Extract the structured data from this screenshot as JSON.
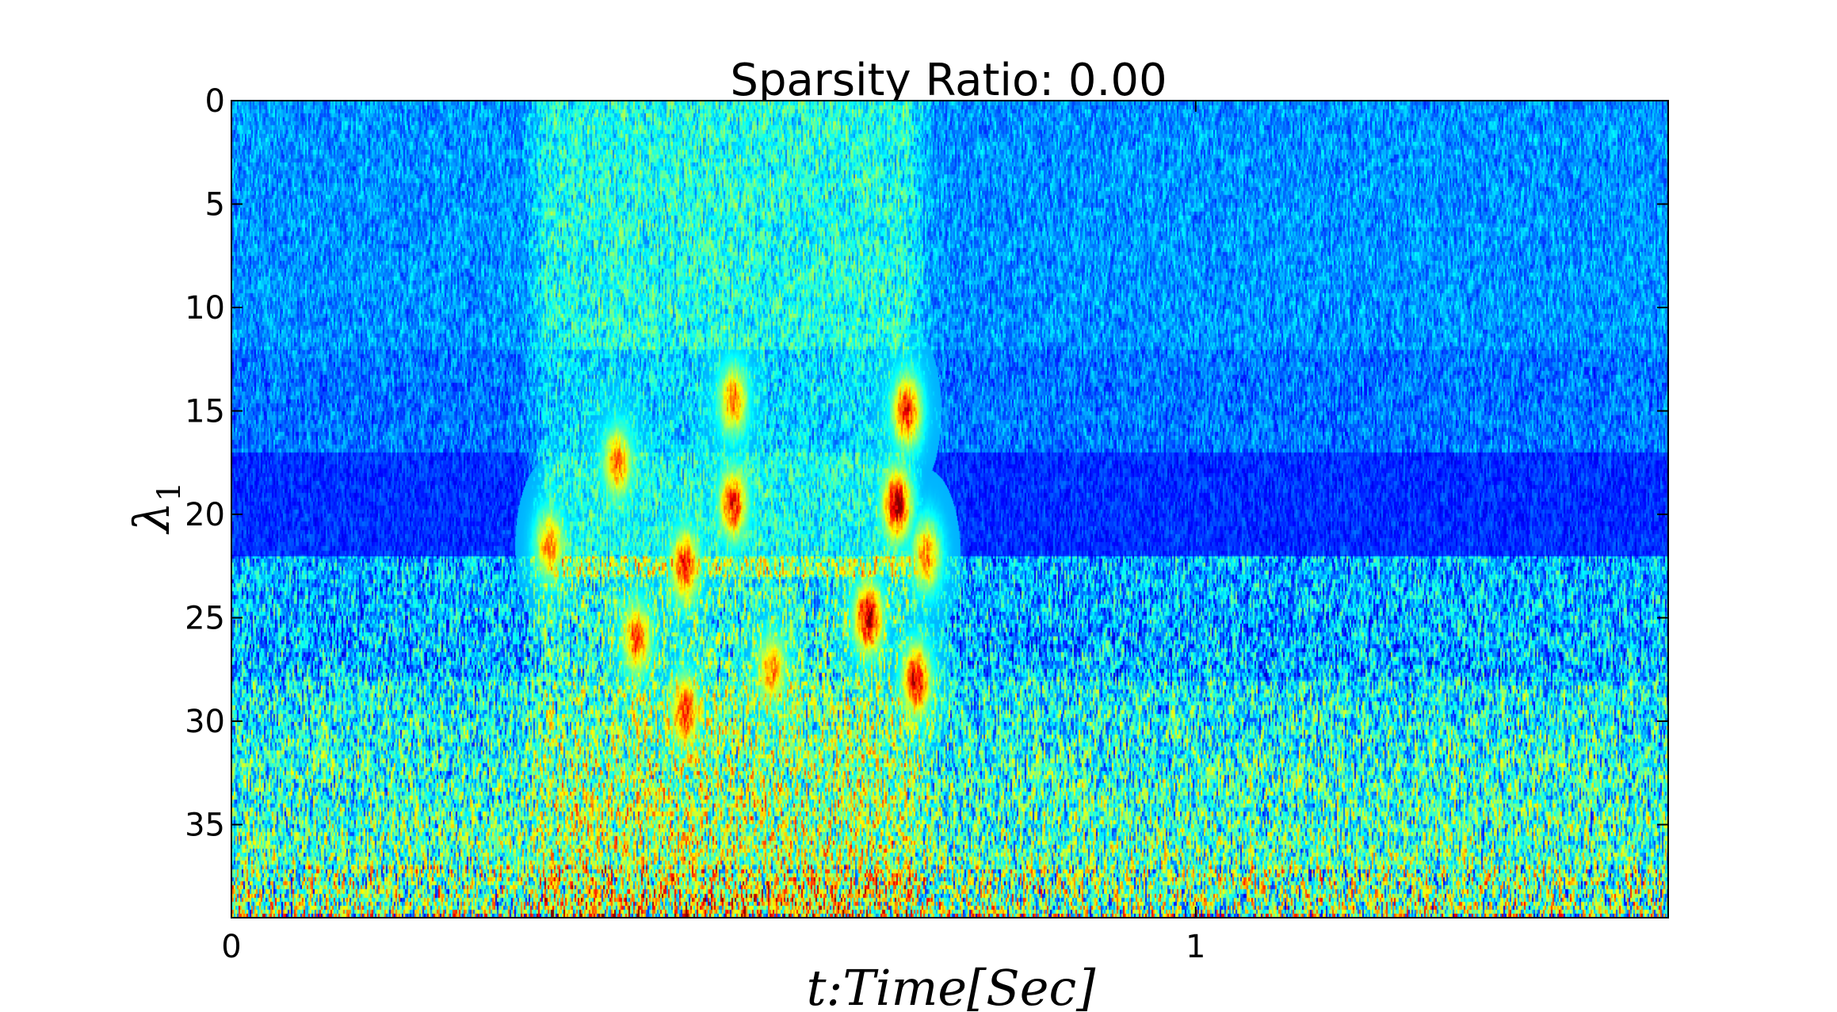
{
  "chart_data": {
    "type": "heatmap",
    "title": "Sparsity Ratio: 0.00",
    "xlabel": "t:Time[Sec]",
    "ylabel": "λ",
    "ylabel_subscript": "1",
    "xlim": [
      0,
      1.49
    ],
    "ylim": [
      0,
      39.5
    ],
    "y_inverted": true,
    "x_ticks": [
      0,
      1
    ],
    "x_tick_labels": [
      "0",
      "1"
    ],
    "y_ticks": [
      0,
      5,
      10,
      15,
      20,
      25,
      30,
      35
    ],
    "y_tick_labels": [
      "0",
      "5",
      "10",
      "15",
      "20",
      "25",
      "30",
      "35"
    ],
    "grid": false,
    "colormap": "jet",
    "description_values": {
      "dominant_low_band_rows": [
        18,
        21
      ],
      "activity_time_window_sec": [
        0.3,
        0.73
      ],
      "hotspots": [
        {
          "t": 0.33,
          "lambda": 21.5,
          "value": 0.75
        },
        {
          "t": 0.4,
          "lambda": 17.5,
          "value": 0.75
        },
        {
          "t": 0.42,
          "lambda": 26,
          "value": 0.8
        },
        {
          "t": 0.47,
          "lambda": 29.5,
          "value": 0.85
        },
        {
          "t": 0.47,
          "lambda": 22.5,
          "value": 0.85
        },
        {
          "t": 0.52,
          "lambda": 19.5,
          "value": 0.85
        },
        {
          "t": 0.52,
          "lambda": 14.5,
          "value": 0.75
        },
        {
          "t": 0.56,
          "lambda": 27.5,
          "value": 0.75
        },
        {
          "t": 0.66,
          "lambda": 25,
          "value": 0.95
        },
        {
          "t": 0.69,
          "lambda": 19.5,
          "value": 0.95
        },
        {
          "t": 0.7,
          "lambda": 15,
          "value": 0.85
        },
        {
          "t": 0.71,
          "lambda": 28,
          "value": 0.9
        },
        {
          "t": 0.72,
          "lambda": 22,
          "value": 0.75
        }
      ]
    }
  }
}
